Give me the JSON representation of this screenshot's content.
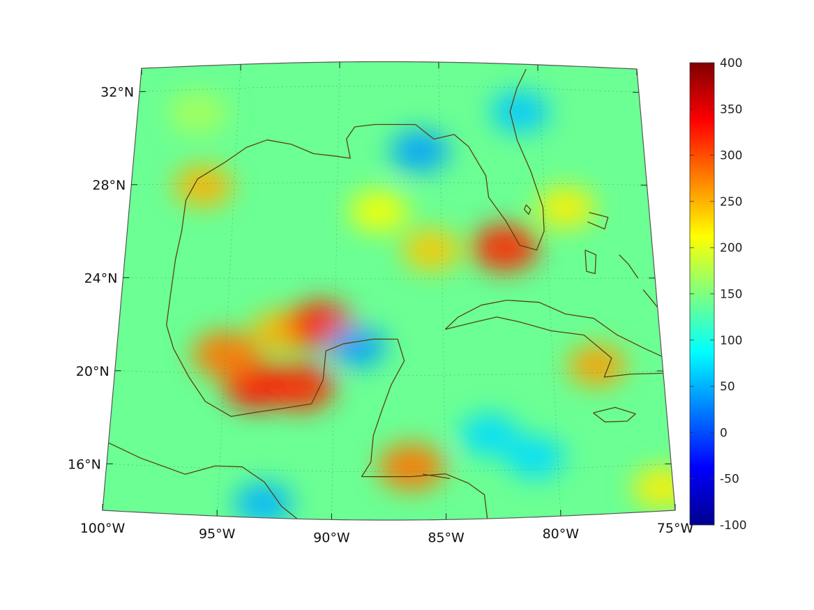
{
  "map": {
    "type": "heatmap",
    "projection": "lambert-conformal",
    "region": "Gulf of Mexico and Caribbean",
    "lon_range": [
      -100,
      -75
    ],
    "lat_range": [
      14,
      33
    ],
    "longitude_ticks": [
      {
        "value": -100,
        "label": "100°W"
      },
      {
        "value": -95,
        "label": "95°W"
      },
      {
        "value": -90,
        "label": "90°W"
      },
      {
        "value": -85,
        "label": "85°W"
      },
      {
        "value": -80,
        "label": "80°W"
      },
      {
        "value": -75,
        "label": "75°W"
      }
    ],
    "latitude_ticks": [
      {
        "value": 32,
        "label": "32°N"
      },
      {
        "value": 28,
        "label": "28°N"
      },
      {
        "value": 24,
        "label": "24°N"
      },
      {
        "value": 20,
        "label": "20°N"
      },
      {
        "value": 16,
        "label": "16°N"
      }
    ],
    "grid": true,
    "coastline_color": "#5a4010",
    "background_value": 140,
    "field_features": [
      {
        "name": "bay-of-campeche-high",
        "lon": -93.5,
        "lat": 19.5,
        "value": 330
      },
      {
        "name": "campeche-high-2",
        "lon": -91.5,
        "lat": 19.5,
        "value": 320
      },
      {
        "name": "campeche-high-3",
        "lon": -95.0,
        "lat": 20.8,
        "value": 280
      },
      {
        "name": "campeche-north",
        "lon": -92.5,
        "lat": 21.8,
        "value": 250
      },
      {
        "name": "yucatan-nw-high",
        "lon": -90.7,
        "lat": 22.1,
        "value": 320
      },
      {
        "name": "yucatan-north-low",
        "lon": -89.0,
        "lat": 21.2,
        "value": 40
      },
      {
        "name": "eastern-gulf-high",
        "lon": -85.5,
        "lat": 25.2,
        "value": 240
      },
      {
        "name": "central-gulf-warm",
        "lon": -88.0,
        "lat": 26.8,
        "value": 210
      },
      {
        "name": "florida-keys-high",
        "lon": -82.0,
        "lat": 25.3,
        "value": 320
      },
      {
        "name": "florida-east-warm",
        "lon": -79.0,
        "lat": 27.0,
        "value": 220
      },
      {
        "name": "big-bend-low",
        "lon": -86.0,
        "lat": 29.3,
        "value": 40
      },
      {
        "name": "florida-atlantic-low",
        "lon": -81.0,
        "lat": 31.0,
        "value": 60
      },
      {
        "name": "texas-coast-warm",
        "lon": -96.5,
        "lat": 27.9,
        "value": 250
      },
      {
        "name": "cuba-south-high",
        "lon": -78.0,
        "lat": 20.3,
        "value": 260
      },
      {
        "name": "honduras-coast-high",
        "lon": -86.5,
        "lat": 16.2,
        "value": 280
      },
      {
        "name": "caribbean-low-1",
        "lon": -83.0,
        "lat": 17.5,
        "value": 70
      },
      {
        "name": "caribbean-low-2",
        "lon": -81.0,
        "lat": 16.5,
        "value": 70
      },
      {
        "name": "pacific-low",
        "lon": -93.0,
        "lat": 14.6,
        "value": 50
      },
      {
        "name": "se-corner-warm",
        "lon": -75.5,
        "lat": 15.0,
        "value": 220
      },
      {
        "name": "northwest-warm",
        "lon": -97.0,
        "lat": 31.0,
        "value": 170
      }
    ]
  },
  "colorbar": {
    "min": -100,
    "max": 400,
    "colormap": "jet",
    "ticks": [
      {
        "value": 400,
        "label": "400"
      },
      {
        "value": 350,
        "label": "350"
      },
      {
        "value": 300,
        "label": "300"
      },
      {
        "value": 250,
        "label": "250"
      },
      {
        "value": 200,
        "label": "200"
      },
      {
        "value": 150,
        "label": "150"
      },
      {
        "value": 100,
        "label": "100"
      },
      {
        "value": 50,
        "label": "50"
      },
      {
        "value": 0,
        "label": "0"
      },
      {
        "value": -50,
        "label": "-50"
      },
      {
        "value": -100,
        "label": "-100"
      }
    ]
  }
}
